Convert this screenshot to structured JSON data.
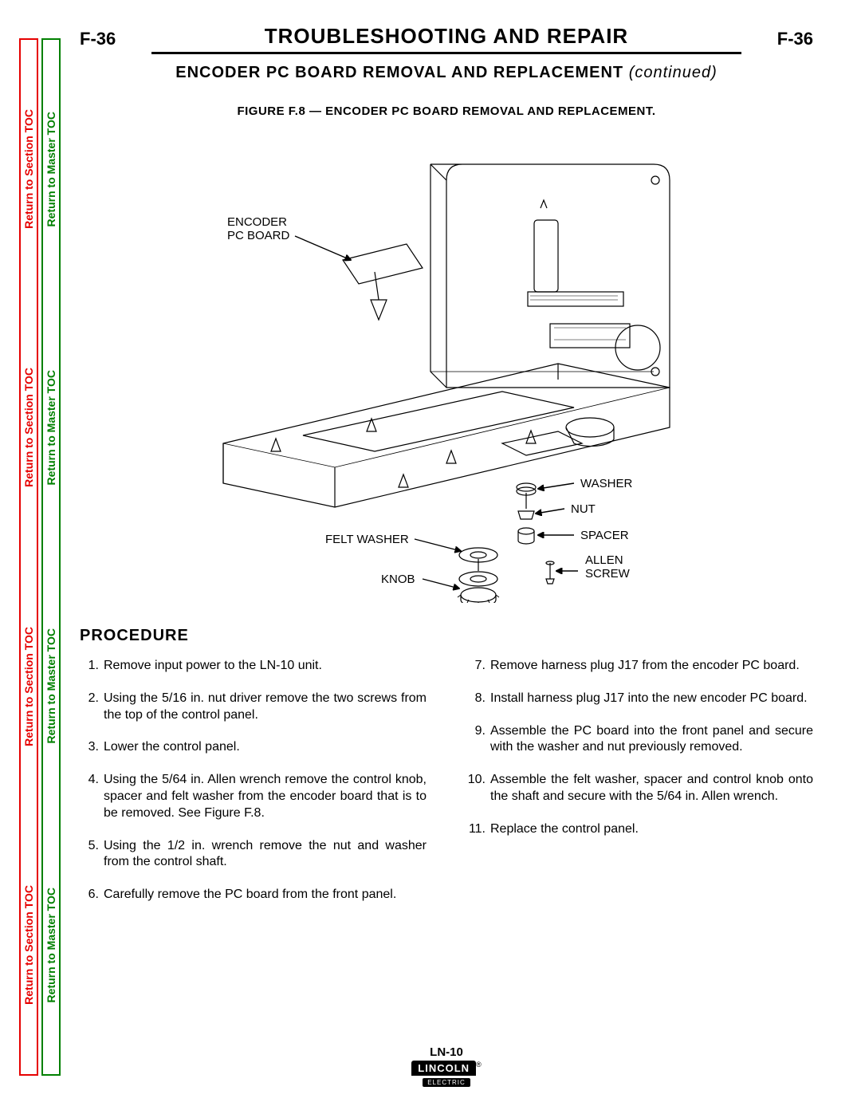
{
  "sidebar": {
    "section_toc_label": "Return to Section TOC",
    "master_toc_label": "Return to Master TOC",
    "section_color": "#e60000",
    "master_color": "#008000",
    "repeat": 4
  },
  "header": {
    "page_code_left": "F-36",
    "page_code_right": "F-36",
    "title": "TROUBLESHOOTING AND REPAIR"
  },
  "subtitle": {
    "main": "ENCODER PC BOARD REMOVAL AND REPLACEMENT",
    "continued": "(continued)"
  },
  "figure": {
    "caption": "FIGURE F.8 — ENCODER PC BOARD REMOVAL AND REPLACEMENT.",
    "callouts": {
      "encoder_pc_board": "ENCODER\nPC BOARD",
      "washer": "WASHER",
      "nut": "NUT",
      "felt_washer": "FELT WASHER",
      "spacer": "SPACER",
      "allen_screw": "ALLEN\nSCREW",
      "knob": "KNOB"
    },
    "stroke_color": "#000000",
    "stroke_width": 1.2,
    "label_fontsize": 15
  },
  "procedure": {
    "heading": "PROCEDURE",
    "steps_left": [
      "Remove input power to the LN-10 unit.",
      "Using the 5/16 in. nut driver remove the two screws from the top of the control panel.",
      "Lower the control panel.",
      "Using the 5/64 in. Allen wrench remove the control knob, spacer and felt washer from the encoder board that is to be removed. See Figure F.8.",
      "Using the 1/2 in. wrench remove the nut and washer from the control shaft.",
      "Carefully remove the PC board from the front panel."
    ],
    "steps_right_start": 7,
    "steps_right": [
      "Remove harness plug J17 from the encoder PC board.",
      "Install harness plug J17 into the new encoder PC board.",
      "Assemble the PC board into the front panel and secure with the washer and nut previously removed.",
      "Assemble the felt washer, spacer and control knob onto the shaft and secure with the 5/64 in. Allen wrench.",
      "Replace the control panel."
    ]
  },
  "footer": {
    "model": "LN-10",
    "brand": "LINCOLN",
    "brand_sub": "ELECTRIC",
    "reg": "®"
  }
}
